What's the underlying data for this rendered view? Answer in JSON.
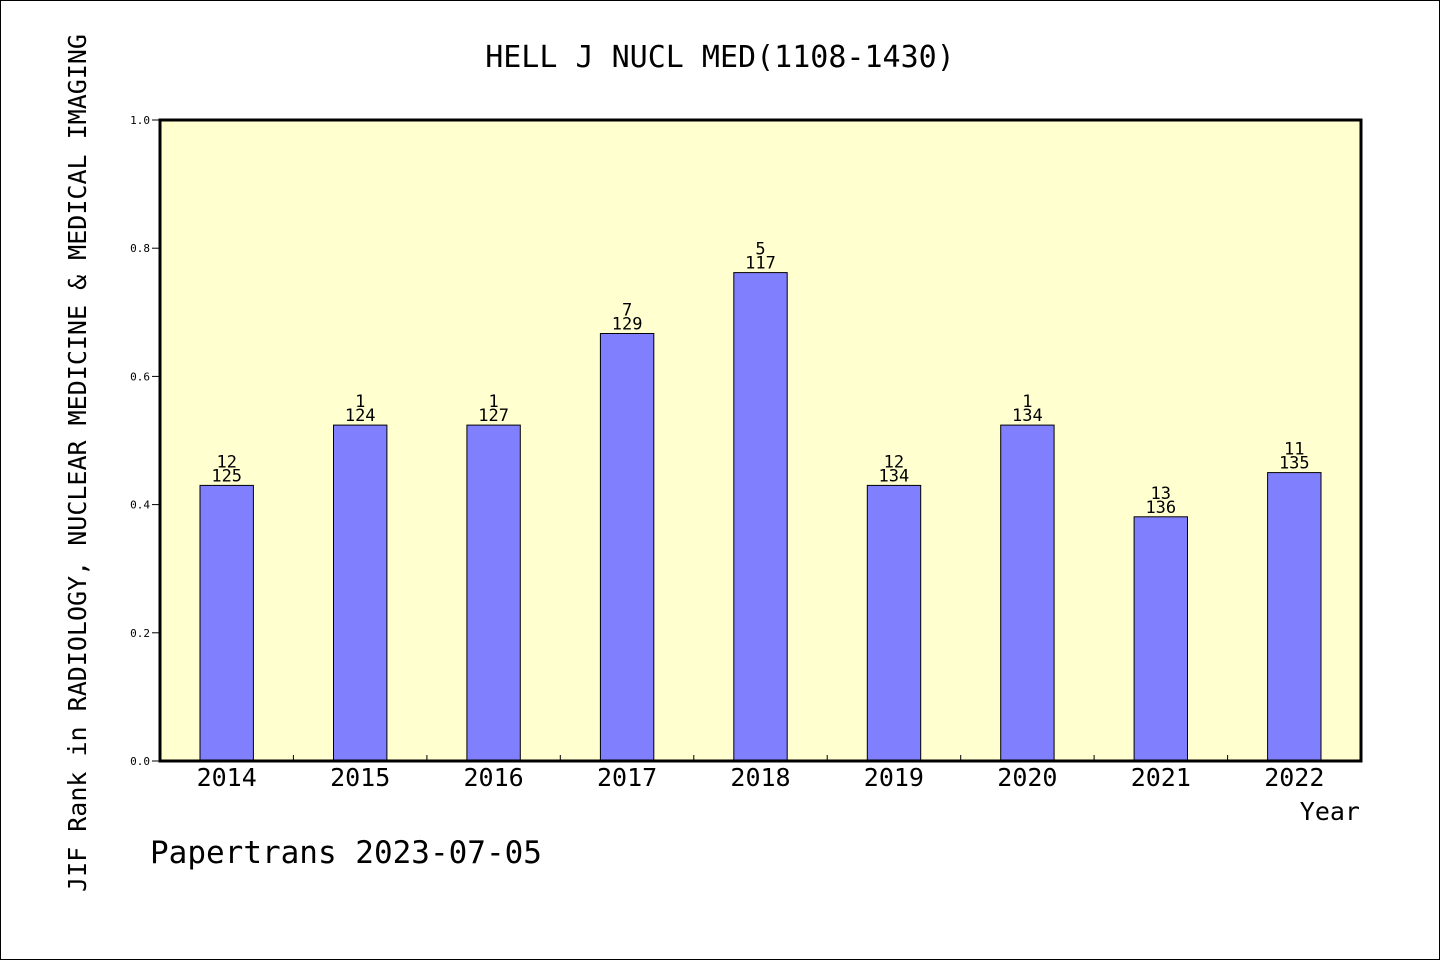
{
  "chart_data": {
    "type": "bar",
    "title": "HELL J NUCL MED(1108-1430)",
    "xlabel": "Year",
    "ylabel": "JIF Rank in RADIOLOGY, NUCLEAR MEDICINE & MEDICAL IMAGING",
    "categories": [
      "2014",
      "2015",
      "2016",
      "2017",
      "2018",
      "2019",
      "2020",
      "2021",
      "2022"
    ],
    "values": [
      0.43,
      0.524,
      0.524,
      0.667,
      0.762,
      0.43,
      0.524,
      0.381,
      0.45
    ],
    "rank_labels": [
      "12",
      "1",
      "1",
      "7",
      "5",
      "12",
      "1",
      "13",
      "11"
    ],
    "total_labels": [
      "125",
      "124",
      "127",
      "129",
      "117",
      "134",
      "134",
      "136",
      "135"
    ],
    "ylim": [
      0,
      1.0
    ],
    "yticks": [
      "0.0",
      "0.2",
      "0.4",
      "0.6",
      "0.8",
      "1.0"
    ],
    "bar_color": "#8080ff",
    "plot_background": "#ffffd0",
    "grid": false,
    "legend": "none"
  },
  "footer": {
    "text": "Papertrans 2023-07-05"
  }
}
